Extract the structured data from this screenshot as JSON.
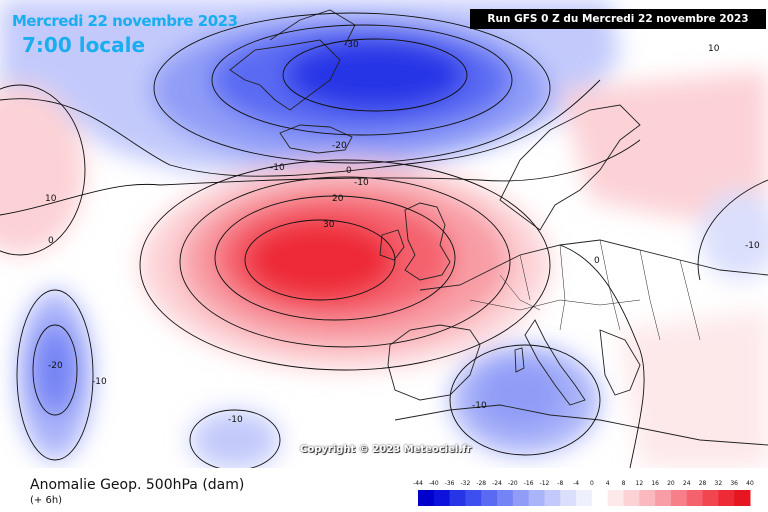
{
  "header": {
    "date_title": "Mercredi 22 novembre 2023",
    "local_time": "7:00 locale",
    "run_info": "Run GFS 0 Z du Mercredi 22 novembre 2023"
  },
  "map": {
    "contour_labels": [
      "-30",
      "-20",
      "-10",
      "0",
      "-10",
      "20",
      "30",
      "10",
      "10",
      "0",
      "-10",
      "0",
      "-20",
      "-10",
      "-10",
      "-10"
    ],
    "copyright": "Copyright © 2023 Meteociel.fr"
  },
  "footer": {
    "field": "Anomalie Geop. 500hPa (dam)",
    "lead": "(+ 6h)"
  },
  "color_scale": {
    "labels": [
      "-44",
      "-40",
      "-36",
      "-32",
      "-28",
      "-24",
      "-20",
      "-16",
      "-12",
      "-8",
      "-4",
      "0",
      "4",
      "8",
      "12",
      "16",
      "20",
      "24",
      "28",
      "32",
      "36",
      "40"
    ],
    "colors": [
      "#0000cc",
      "#0d12dd",
      "#2636e6",
      "#3d4fee",
      "#5a6af3",
      "#7483f5",
      "#909df7",
      "#aab4f9",
      "#c3cafb",
      "#dadffc",
      "#eef0fe",
      "#ffffff",
      "#fde8ea",
      "#fcd2d6",
      "#fab9bf",
      "#f89da5",
      "#f67f8a",
      "#f4626e",
      "#f14552",
      "#ee2a37",
      "#e51620"
    ]
  }
}
